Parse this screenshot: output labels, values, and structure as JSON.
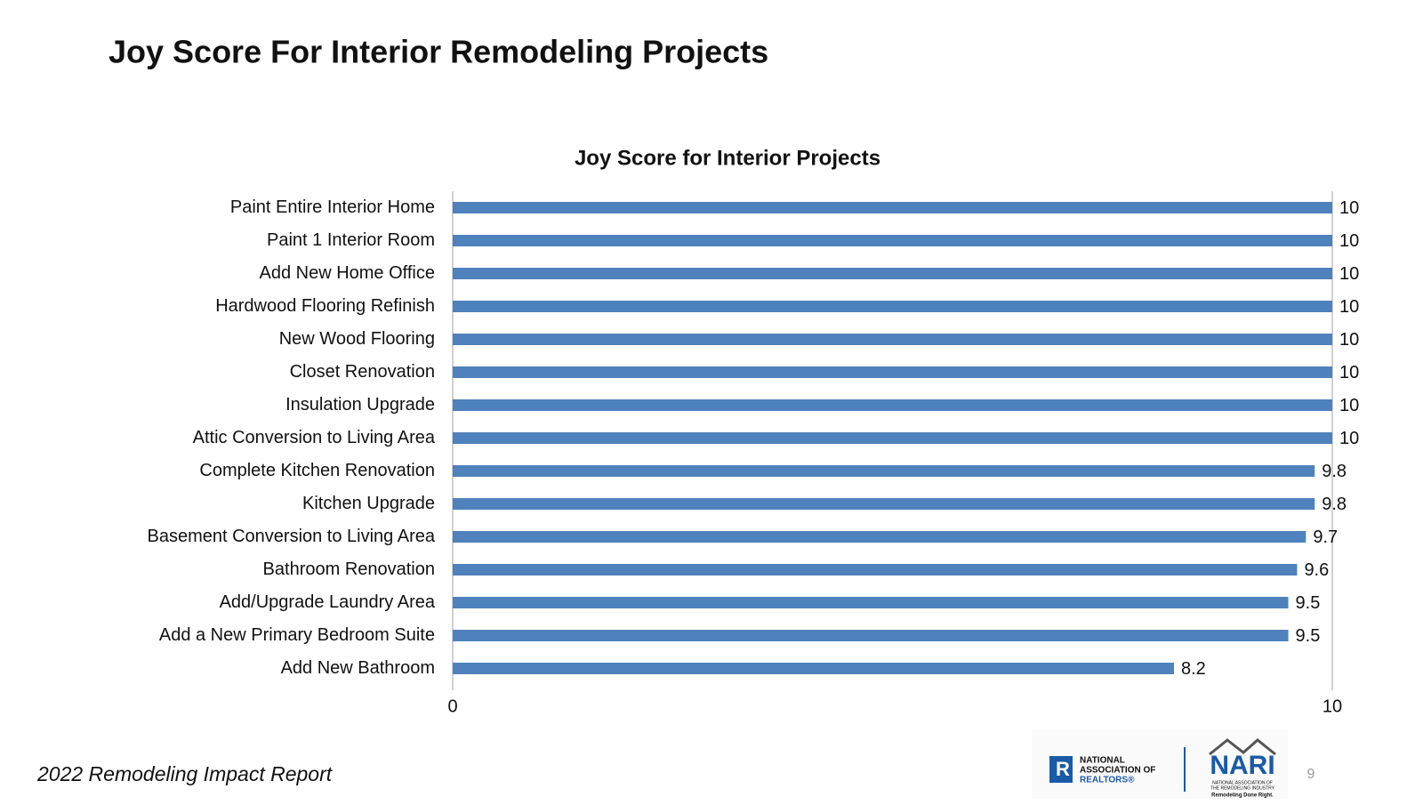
{
  "slide_title": "Joy Score For Interior Remodeling Projects",
  "footer": "2022 Remodeling Impact Report",
  "page_number": 9,
  "logos": {
    "realtors": [
      "NATIONAL",
      "ASSOCIATION OF",
      "REALTORS®"
    ],
    "nari": "NARI",
    "nari_subtitle": [
      "NATIONAL ASSOCIATION OF",
      "THE REMODELING INDUSTRY"
    ],
    "nari_tagline": "Remodeling Done Right."
  },
  "chart_data": {
    "type": "hbar",
    "title": "Joy Score for Interior Projects",
    "categories": [
      "Paint Entire Interior Home",
      "Paint 1 Interior Room",
      "Add New Home Office",
      "Hardwood Flooring Refinish",
      "New Wood Flooring",
      "Closet Renovation",
      "Insulation Upgrade",
      "Attic Conversion to Living Area",
      "Complete Kitchen Renovation",
      "Kitchen Upgrade",
      "Basement Conversion to Living Area",
      "Bathroom Renovation",
      "Add/Upgrade Laundry Area",
      "Add a New Primary Bedroom Suite",
      "Add New Bathroom"
    ],
    "values": [
      10,
      10,
      10,
      10,
      10,
      10,
      10,
      10,
      9.8,
      9.8,
      9.7,
      9.6,
      9.5,
      9.5,
      8.2
    ],
    "color": "#4f81bd",
    "xlim": [
      0,
      10
    ],
    "xticks": [
      0,
      10
    ],
    "grid": true
  }
}
